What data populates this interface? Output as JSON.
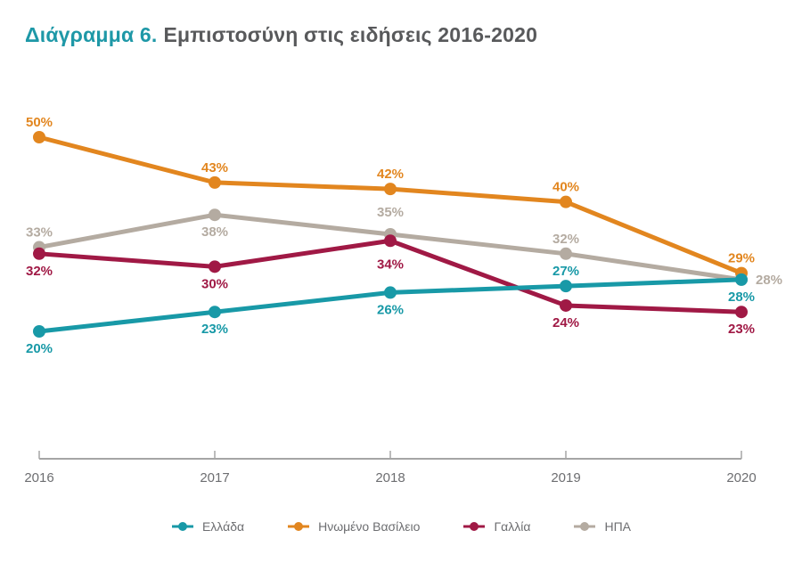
{
  "title": {
    "prefix": "Διάγραμμα 6.",
    "main": "Εμπιστοσύνη στις ειδήσεις 2016-2020"
  },
  "colors": {
    "background": "#FFFFFF",
    "title_prefix": "#1E98A7",
    "title_main": "#58595B",
    "axis_line": "#A5A5A5",
    "axis_text": "#6D6E71",
    "legend_text": "#6D6E71"
  },
  "chart_data": {
    "type": "line",
    "title": "Εμπιστοσύνη στις ειδήσεις 2016-2020",
    "x": [
      "2016",
      "2017",
      "2018",
      "2019",
      "2020"
    ],
    "xlabel": "",
    "ylabel": "",
    "ylim": [
      14,
      56
    ],
    "grid": false,
    "y_axis_visible": false,
    "legend_position": "bottom",
    "series": [
      {
        "name": "Ελλάδα",
        "color": "#1899A7",
        "values": [
          20,
          23,
          26,
          27,
          28
        ],
        "labels": [
          "20%",
          "23%",
          "26%",
          "27%",
          "28%"
        ],
        "label_positions": [
          "below",
          "below",
          "below",
          "above",
          "below"
        ]
      },
      {
        "name": "Ηνωμένο Βασίλειο",
        "color": "#E2861F",
        "values": [
          50,
          43,
          42,
          40,
          29
        ],
        "labels": [
          "50%",
          "43%",
          "42%",
          "40%",
          "29%"
        ],
        "label_positions": [
          "above",
          "above",
          "above",
          "above",
          "above"
        ]
      },
      {
        "name": "Γαλλία",
        "color": "#A01945",
        "values": [
          32,
          30,
          34,
          24,
          23
        ],
        "labels": [
          "32%",
          "30%",
          "34%",
          "24%",
          "23%"
        ],
        "label_positions": [
          "below",
          "below",
          "below-far",
          "below",
          "below"
        ]
      },
      {
        "name": "ΗΠΑ",
        "color": "#B4ABA1",
        "values": [
          33,
          38,
          35,
          32,
          28
        ],
        "labels": [
          "33%",
          "38%",
          "35%",
          "32%",
          "28%"
        ],
        "label_positions": [
          "above",
          "below",
          "above-far",
          "above",
          "right"
        ]
      }
    ]
  }
}
